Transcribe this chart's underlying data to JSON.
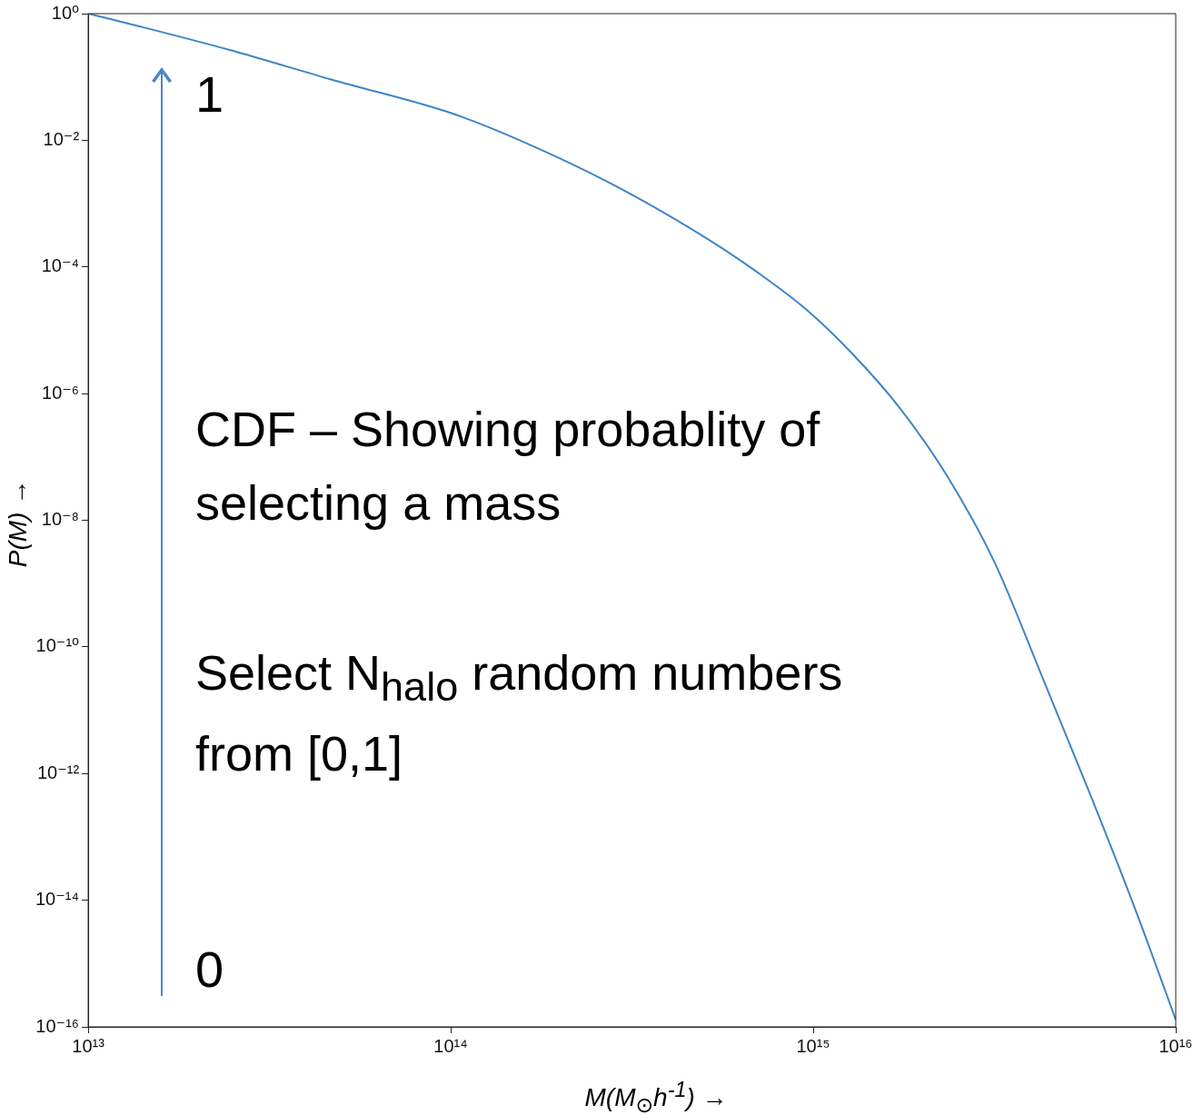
{
  "chart_data": {
    "type": "line",
    "xlabel": "M(M$_{⊙}$h$^{-1}$) →",
    "ylabel": "P(M) →",
    "x": [
      10000000000000.0,
      14000000000000.0,
      25600000000000.0,
      46800000000000.0,
      100000000000000.0,
      155000000000000.0,
      285000000000000.0,
      520000000000000.0,
      700000000000000.0,
      950000000000000.0,
      1280000000000000.0,
      1730000000000000.0,
      2340000000000000.0,
      3160000000000000.0,
      4270000000000000.0,
      5780000000000000.0,
      7800000000000000.0,
      1e+16
    ],
    "series": [
      {
        "color": "#3d85c6",
        "values": [
          1,
          0.62,
          0.25,
          0.091,
          0.027,
          0.01,
          0.0019,
          0.00026,
          8.3e-05,
          2.2e-05,
          4.3e-06,
          6e-07,
          5e-08,
          2.2e-09,
          3.5e-11,
          5e-13,
          6.3e-15,
          1.3e-16
        ]
      }
    ],
    "log": "xy",
    "xlim": [
      10000000000000.0,
      1e+16
    ],
    "ylim": [
      1e-16,
      1
    ],
    "xticks": [
      {
        "value": 10000000000000.0,
        "label": "10¹³"
      },
      {
        "value": 100000000000000.0,
        "label": "10¹⁴"
      },
      {
        "value": 1000000000000000.0,
        "label": "10¹⁵"
      },
      {
        "value": 1e+16,
        "label": "10¹⁶"
      }
    ],
    "yticks": [
      {
        "value": 1e-16,
        "label": "10⁻¹⁶"
      },
      {
        "value": 1e-14,
        "label": "10⁻¹⁴"
      },
      {
        "value": 1e-12,
        "label": "10⁻¹²"
      },
      {
        "value": 1e-10,
        "label": "10⁻¹⁰"
      },
      {
        "value": 1e-08,
        "label": "10⁻⁸"
      },
      {
        "value": 1e-06,
        "label": "10⁻⁶"
      },
      {
        "value": 0.0001,
        "label": "10⁻⁴"
      },
      {
        "value": 0.01,
        "label": "10⁻²"
      },
      {
        "value": 1,
        "label": "10⁰"
      }
    ],
    "annotations": [
      "1",
      "CDF – Showing probablity of selecting a mass",
      "Select N$_{halo}$ random numbers from [0,1]",
      "0"
    ],
    "grid": false,
    "legend": false,
    "marker": "none",
    "line_style": "solid"
  }
}
